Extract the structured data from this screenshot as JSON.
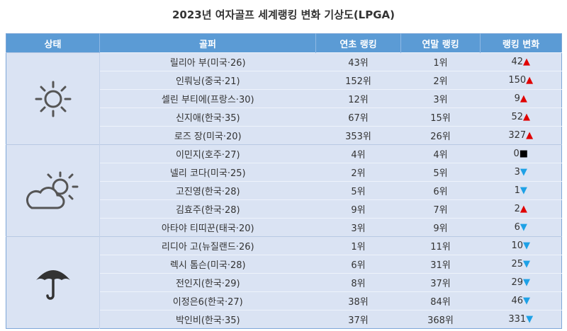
{
  "title": "2023년 여자골프 세계랭킹 변화 기상도(LPGA)",
  "headers": [
    "상태",
    "골퍼",
    "연초 랭킹",
    "연말 랭킹",
    "랭킹 변화"
  ],
  "colors": {
    "header": "#5b9bd5",
    "row": "#dae3f3",
    "up": "#e00000",
    "down": "#1ea1e6"
  },
  "groups": [
    {
      "icon": "sun-icon",
      "rows": [
        {
          "golfer": "릴리아 부(미국·26)",
          "start": "43위",
          "end": "1위",
          "change": "42",
          "dir": "up"
        },
        {
          "golfer": "인뤄닝(중국·21)",
          "start": "152위",
          "end": "2위",
          "change": "150",
          "dir": "up"
        },
        {
          "golfer": "셀린 부티에(프랑스·30)",
          "start": "12위",
          "end": "3위",
          "change": "9",
          "dir": "up"
        },
        {
          "golfer": "신지애(한국·35)",
          "start": "67위",
          "end": "15위",
          "change": "52",
          "dir": "up"
        },
        {
          "golfer": "로즈 장(미국·20)",
          "start": "353위",
          "end": "26위",
          "change": "327",
          "dir": "up"
        }
      ]
    },
    {
      "icon": "partly-cloudy-icon",
      "rows": [
        {
          "golfer": "이민지(호주·27)",
          "start": "4위",
          "end": "4위",
          "change": "0",
          "dir": "same"
        },
        {
          "golfer": "넬리 코다(미국·25)",
          "start": "2위",
          "end": "5위",
          "change": "3",
          "dir": "down"
        },
        {
          "golfer": "고진영(한국·28)",
          "start": "5위",
          "end": "6위",
          "change": "1",
          "dir": "down"
        },
        {
          "golfer": "김효주(한국·28)",
          "start": "9위",
          "end": "7위",
          "change": "2",
          "dir": "up"
        },
        {
          "golfer": "아타야 티띠꾼(태국·20)",
          "start": "3위",
          "end": "9위",
          "change": "6",
          "dir": "down"
        }
      ]
    },
    {
      "icon": "umbrella-icon",
      "rows": [
        {
          "golfer": "리디아 고(뉴질랜드·26)",
          "start": "1위",
          "end": "11위",
          "change": "10",
          "dir": "down"
        },
        {
          "golfer": "렉시 톰슨(미국·28)",
          "start": "6위",
          "end": "31위",
          "change": "25",
          "dir": "down"
        },
        {
          "golfer": "전인지(한국·29)",
          "start": "8위",
          "end": "37위",
          "change": "29",
          "dir": "down"
        },
        {
          "golfer": "이정은6(한국·27)",
          "start": "38위",
          "end": "84위",
          "change": "46",
          "dir": "down"
        },
        {
          "golfer": "박인비(한국·35)",
          "start": "37위",
          "end": "368위",
          "change": "331",
          "dir": "down"
        }
      ]
    }
  ]
}
